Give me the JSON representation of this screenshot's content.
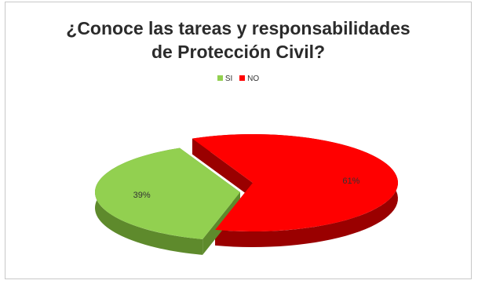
{
  "chart_data": {
    "type": "pie",
    "title_lines": [
      "¿Conoce las tareas y responsabilidades",
      "de Protección Civil?"
    ],
    "legend_position": "top",
    "slices": [
      {
        "name": "SI",
        "value": 39,
        "label": "39%",
        "color": "#92d050",
        "side_color": "#5e8a2c"
      },
      {
        "name": "NO",
        "value": 61,
        "label": "61%",
        "color": "#ff0000",
        "side_color": "#9a0000"
      }
    ]
  }
}
